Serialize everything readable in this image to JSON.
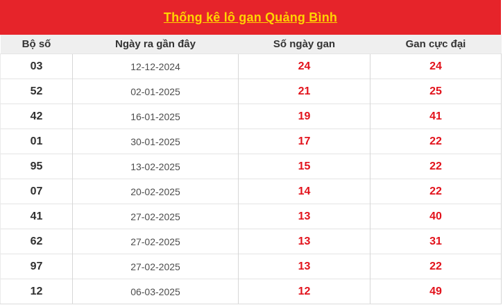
{
  "title": "Thống kê lô gan Quảng Bình",
  "colors": {
    "banner_bg": "#e6242a",
    "title_yellow": "#ffd400",
    "header_bg": "#efefef",
    "header_text": "#333333",
    "number_dark": "#2f2f2f",
    "date_gray": "#4d4d4d",
    "value_red": "#e2121b"
  },
  "table": {
    "columns": [
      "Bộ số",
      "Ngày ra gần đây",
      "Số ngày gan",
      "Gan cực đại"
    ],
    "rows": [
      {
        "bo_so": "03",
        "ngay_ra": "12-12-2024",
        "so_ngay_gan": "24",
        "gan_cuc_dai": "24"
      },
      {
        "bo_so": "52",
        "ngay_ra": "02-01-2025",
        "so_ngay_gan": "21",
        "gan_cuc_dai": "25"
      },
      {
        "bo_so": "42",
        "ngay_ra": "16-01-2025",
        "so_ngay_gan": "19",
        "gan_cuc_dai": "41"
      },
      {
        "bo_so": "01",
        "ngay_ra": "30-01-2025",
        "so_ngay_gan": "17",
        "gan_cuc_dai": "22"
      },
      {
        "bo_so": "95",
        "ngay_ra": "13-02-2025",
        "so_ngay_gan": "15",
        "gan_cuc_dai": "22"
      },
      {
        "bo_so": "07",
        "ngay_ra": "20-02-2025",
        "so_ngay_gan": "14",
        "gan_cuc_dai": "22"
      },
      {
        "bo_so": "41",
        "ngay_ra": "27-02-2025",
        "so_ngay_gan": "13",
        "gan_cuc_dai": "40"
      },
      {
        "bo_so": "62",
        "ngay_ra": "27-02-2025",
        "so_ngay_gan": "13",
        "gan_cuc_dai": "31"
      },
      {
        "bo_so": "97",
        "ngay_ra": "27-02-2025",
        "so_ngay_gan": "13",
        "gan_cuc_dai": "22"
      },
      {
        "bo_so": "12",
        "ngay_ra": "06-03-2025",
        "so_ngay_gan": "12",
        "gan_cuc_dai": "49"
      }
    ]
  }
}
